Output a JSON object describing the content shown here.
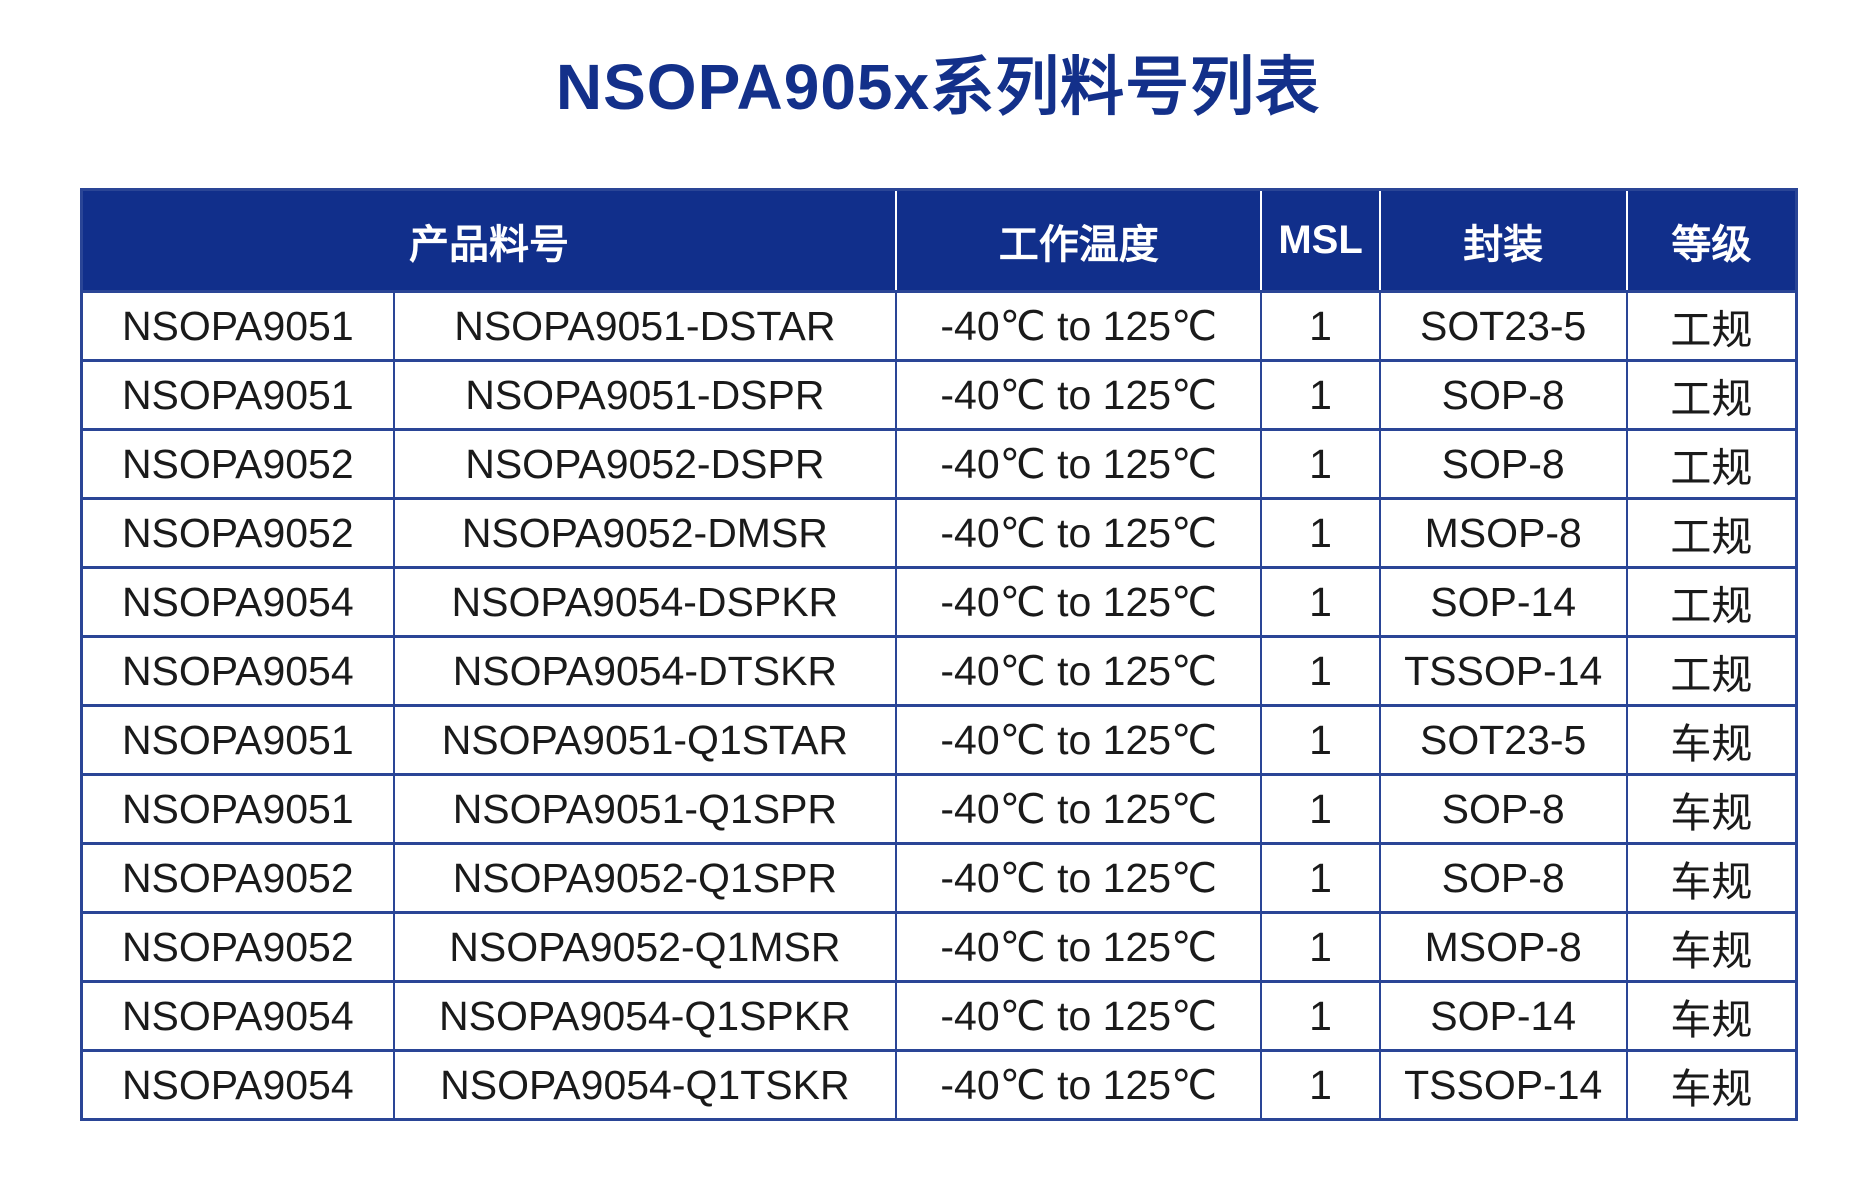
{
  "page": {
    "title": "NSOPA905x系列料号列表"
  },
  "colors": {
    "title_text": "#13308A",
    "header_background": "#112F8B",
    "header_text": "#FFFFFF",
    "table_border": "#2A4596",
    "body_text": "#1A1A1A",
    "row_background": "#FFFFFF"
  },
  "table": {
    "headers": [
      {
        "label": "产品料号"
      },
      {
        "label": "工作温度"
      },
      {
        "label": "MSL"
      },
      {
        "label": "封装"
      },
      {
        "label": "等级"
      }
    ],
    "rows": [
      [
        "NSOPA9051",
        "NSOPA9051-DSTAR",
        "-40℃ to 125℃",
        "1",
        "SOT23-5",
        "工规"
      ],
      [
        "NSOPA9051",
        "NSOPA9051-DSPR",
        "-40℃ to 125℃",
        "1",
        "SOP-8",
        "工规"
      ],
      [
        "NSOPA9052",
        "NSOPA9052-DSPR",
        "-40℃ to 125℃",
        "1",
        "SOP-8",
        "工规"
      ],
      [
        "NSOPA9052",
        "NSOPA9052-DMSR",
        "-40℃ to 125℃",
        "1",
        "MSOP-8",
        "工规"
      ],
      [
        "NSOPA9054",
        "NSOPA9054-DSPKR",
        "-40℃ to 125℃",
        "1",
        "SOP-14",
        "工规"
      ],
      [
        "NSOPA9054",
        "NSOPA9054-DTSKR",
        "-40℃ to 125℃",
        "1",
        "TSSOP-14",
        "工规"
      ],
      [
        "NSOPA9051",
        "NSOPA9051-Q1STAR",
        "-40℃ to 125℃",
        "1",
        "SOT23-5",
        "车规"
      ],
      [
        "NSOPA9051",
        "NSOPA9051-Q1SPR",
        "-40℃ to 125℃",
        "1",
        "SOP-8",
        "车规"
      ],
      [
        "NSOPA9052",
        "NSOPA9052-Q1SPR",
        "-40℃ to 125℃",
        "1",
        "SOP-8",
        "车规"
      ],
      [
        "NSOPA9052",
        "NSOPA9052-Q1MSR",
        "-40℃ to 125℃",
        "1",
        "MSOP-8",
        "车规"
      ],
      [
        "NSOPA9054",
        "NSOPA9054-Q1SPKR",
        "-40℃ to 125℃",
        "1",
        "SOP-14",
        "车规"
      ],
      [
        "NSOPA9054",
        "NSOPA9054-Q1TSKR",
        "-40℃ to 125℃",
        "1",
        "TSSOP-14",
        "车规"
      ]
    ]
  }
}
